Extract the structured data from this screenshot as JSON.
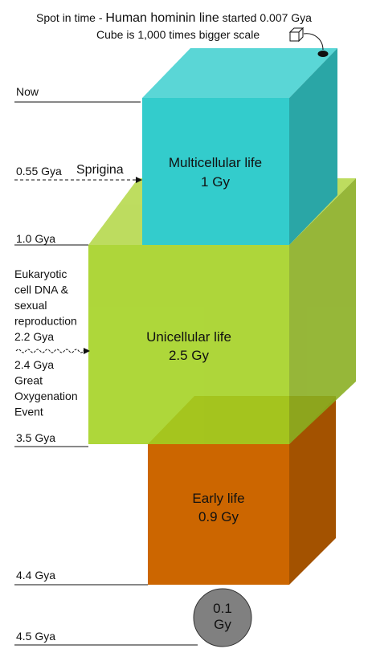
{
  "header": {
    "line1": [
      "Spot in time - ",
      "Human hominin line",
      " started 0.007 Gya"
    ],
    "line2": "Cube is 1,000 times bigger scale"
  },
  "timeline": {
    "now": "Now",
    "sprigina_time": "0.55 Gya",
    "sprigina": "Sprigina",
    "one_gya": "1.0 Gya",
    "eukaryotic": [
      "Eukaryotic",
      "cell DNA  &",
      "sexual",
      "reproduction",
      "2.2 Gya"
    ],
    "oxygenation": [
      "2.4 Gya",
      "Great",
      "Oxygenation",
      "Event"
    ],
    "three_five": "3.5 Gya",
    "four_four": "4.4 Gya",
    "four_five": "4.5 Gya"
  },
  "cubes": [
    {
      "label": "Multicellular life",
      "duration": "1 Gy"
    },
    {
      "label": "Unicellular life",
      "duration": "2.5 Gy"
    },
    {
      "label": "Early life",
      "duration": "0.9 Gy"
    }
  ],
  "circle": {
    "value": "0.1",
    "unit": "Gy"
  }
}
